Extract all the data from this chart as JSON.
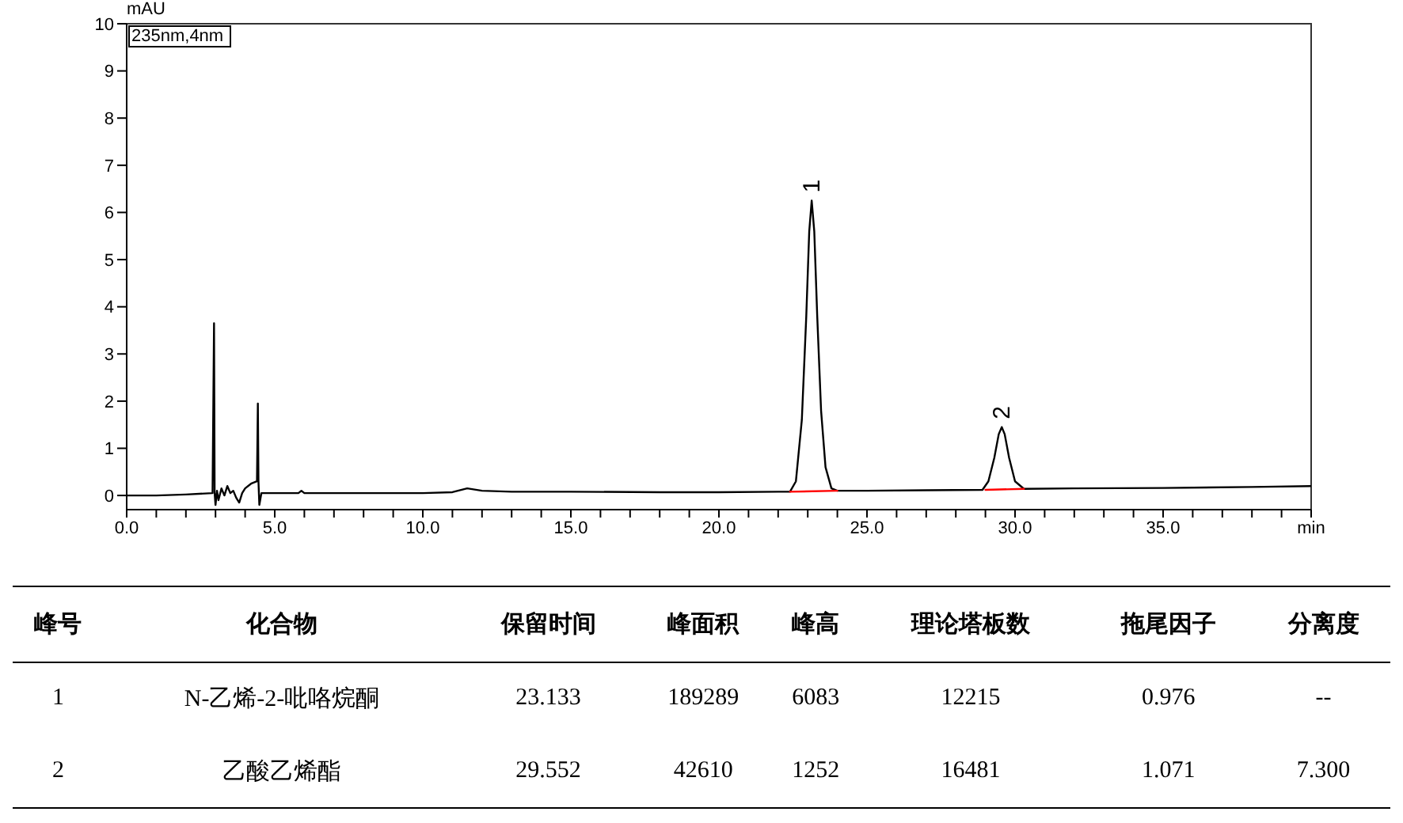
{
  "chart_data": {
    "type": "line",
    "ylabel": "mAU",
    "xlim": [
      0,
      40
    ],
    "ylim": [
      -0.3,
      10
    ],
    "xticks": [
      {
        "value": 0,
        "label": "0.0"
      },
      {
        "value": 1,
        "label": null
      },
      {
        "value": 2,
        "label": null
      },
      {
        "value": 3,
        "label": null
      },
      {
        "value": 4,
        "label": null
      },
      {
        "value": 5,
        "label": "5.0"
      },
      {
        "value": 6,
        "label": null
      },
      {
        "value": 7,
        "label": null
      },
      {
        "value": 8,
        "label": null
      },
      {
        "value": 9,
        "label": null
      },
      {
        "value": 10,
        "label": "10.0"
      },
      {
        "value": 11,
        "label": null
      },
      {
        "value": 12,
        "label": null
      },
      {
        "value": 13,
        "label": null
      },
      {
        "value": 14,
        "label": null
      },
      {
        "value": 15,
        "label": "15.0"
      },
      {
        "value": 16,
        "label": null
      },
      {
        "value": 17,
        "label": null
      },
      {
        "value": 18,
        "label": null
      },
      {
        "value": 19,
        "label": null
      },
      {
        "value": 20,
        "label": "20.0"
      },
      {
        "value": 21,
        "label": null
      },
      {
        "value": 22,
        "label": null
      },
      {
        "value": 23,
        "label": null
      },
      {
        "value": 24,
        "label": null
      },
      {
        "value": 25,
        "label": "25.0"
      },
      {
        "value": 26,
        "label": null
      },
      {
        "value": 27,
        "label": null
      },
      {
        "value": 28,
        "label": null
      },
      {
        "value": 29,
        "label": null
      },
      {
        "value": 30,
        "label": "30.0"
      },
      {
        "value": 31,
        "label": null
      },
      {
        "value": 32,
        "label": null
      },
      {
        "value": 33,
        "label": null
      },
      {
        "value": 34,
        "label": null
      },
      {
        "value": 35,
        "label": "35.0"
      },
      {
        "value": 36,
        "label": null
      },
      {
        "value": 37,
        "label": null
      },
      {
        "value": 38,
        "label": null
      },
      {
        "value": 39,
        "label": null
      },
      {
        "value": 40,
        "label": "min"
      }
    ],
    "yticks": [
      0,
      1,
      2,
      3,
      4,
      5,
      6,
      7,
      8,
      9,
      10
    ],
    "grid": false,
    "marker": "none",
    "line_style": "solid",
    "series": [
      {
        "color": "#000000",
        "x": [
          0,
          1,
          2,
          2.9,
          2.95,
          2.97,
          3.0,
          3.05,
          3.1,
          3.2,
          3.3,
          3.4,
          3.5,
          3.6,
          3.7,
          3.8,
          3.9,
          4.0,
          4.2,
          4.4,
          4.43,
          4.45,
          4.48,
          4.55,
          5.0,
          5.8,
          5.9,
          6.0,
          7,
          8,
          9,
          10,
          11,
          11.5,
          12,
          13,
          15,
          18,
          20,
          22,
          22.4,
          22.6,
          22.8,
          22.95,
          23.05,
          23.133,
          23.22,
          23.32,
          23.45,
          23.6,
          23.8,
          24.0,
          25,
          27,
          28.9,
          29.1,
          29.3,
          29.45,
          29.552,
          29.65,
          29.8,
          30.0,
          30.3,
          32,
          35,
          38,
          40
        ],
        "values": [
          0.0,
          0.0,
          0.02,
          0.05,
          3.65,
          0.05,
          -0.2,
          0.1,
          -0.1,
          0.15,
          0.0,
          0.2,
          0.05,
          0.1,
          -0.05,
          -0.15,
          0.05,
          0.15,
          0.25,
          0.3,
          1.95,
          0.3,
          -0.2,
          0.05,
          0.05,
          0.05,
          0.1,
          0.05,
          0.05,
          0.05,
          0.05,
          0.05,
          0.07,
          0.15,
          0.1,
          0.08,
          0.08,
          0.07,
          0.07,
          0.08,
          0.08,
          0.3,
          1.6,
          3.8,
          5.6,
          6.25,
          5.6,
          3.8,
          1.8,
          0.6,
          0.15,
          0.1,
          0.1,
          0.11,
          0.12,
          0.3,
          0.8,
          1.3,
          1.45,
          1.3,
          0.8,
          0.3,
          0.14,
          0.15,
          0.16,
          0.18,
          0.2
        ]
      },
      {
        "color": "#ff0000",
        "x": [
          22.4,
          24.0
        ],
        "values": [
          0.08,
          0.1
        ]
      },
      {
        "color": "#ff0000",
        "x": [
          29.0,
          30.3
        ],
        "values": [
          0.12,
          0.14
        ]
      }
    ],
    "annotations": [
      "235nm,4nm",
      {
        "text": "1",
        "x": 23.133,
        "y": 6.25
      },
      {
        "text": "2",
        "x": 29.552,
        "y": 1.45
      },
      "峰号",
      "化合物",
      "保留时间",
      "峰面积",
      "峰高",
      "理论塔板数",
      "拖尾因子",
      "分离度",
      "1",
      "N-乙烯-2-吡咯烷酮",
      "23.133",
      "189289",
      "6083",
      "12215",
      "0.976",
      "--",
      "2",
      "乙酸乙烯酯",
      "29.552",
      "42610",
      "1252",
      "16481",
      "1.071",
      "7.300"
    ]
  }
}
